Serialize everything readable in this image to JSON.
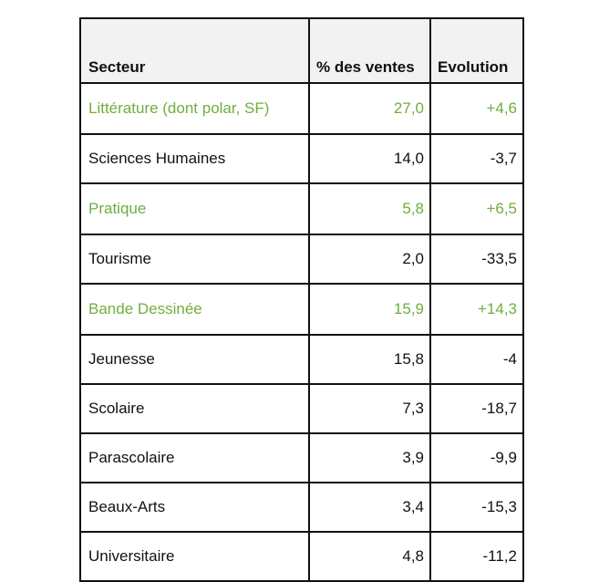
{
  "table": {
    "headers": {
      "sector": "Secteur",
      "pct": "% des ventes",
      "evolution": "Evolution"
    },
    "rows": [
      {
        "sector": "Littérature (dont polar, SF)",
        "pct": "27,0",
        "evolution": "+4,6",
        "highlight": true
      },
      {
        "sector": "Sciences Humaines",
        "pct": "14,0",
        "evolution": "-3,7",
        "highlight": false
      },
      {
        "sector": "Pratique",
        "pct": "5,8",
        "evolution": "+6,5",
        "highlight": true
      },
      {
        "sector": "Tourisme",
        "pct": "2,0",
        "evolution": "-33,5",
        "highlight": false
      },
      {
        "sector": "Bande Dessinée",
        "pct": "15,9",
        "evolution": "+14,3",
        "highlight": true
      },
      {
        "sector": "Jeunesse",
        "pct": "15,8",
        "evolution": "-4",
        "highlight": false
      },
      {
        "sector": "Scolaire",
        "pct": "7,3",
        "evolution": "-18,7",
        "highlight": false
      },
      {
        "sector": "Parascolaire",
        "pct": "3,9",
        "evolution": "-9,9",
        "highlight": false
      },
      {
        "sector": "Beaux-Arts",
        "pct": "3,4",
        "evolution": "-15,3",
        "highlight": false
      },
      {
        "sector": "Universitaire",
        "pct": "4,8",
        "evolution": "-11,2",
        "highlight": false
      }
    ]
  },
  "colors": {
    "highlight_text": "#6fae3f",
    "header_background": "#f2f2f2",
    "text": "#111111"
  }
}
